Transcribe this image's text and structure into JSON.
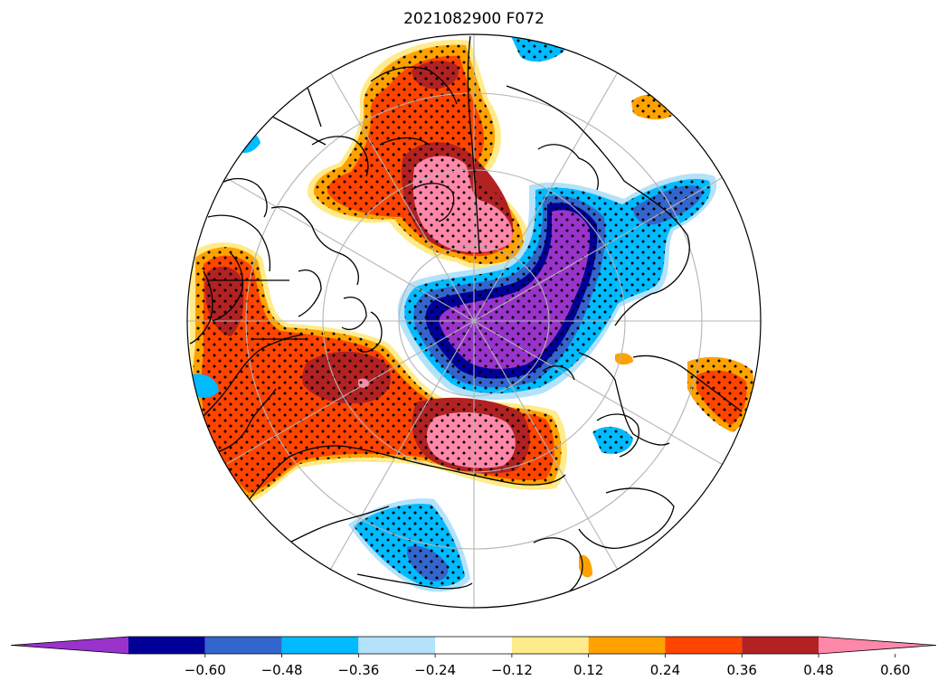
{
  "title": "2021082900 F072",
  "projection": "north-polar-stereographic",
  "stippling": "dots mark significant regions",
  "colorbar": {
    "orientation": "horizontal",
    "extend": "both",
    "levels": [
      -0.6,
      -0.48,
      -0.36,
      -0.24,
      -0.12,
      0.12,
      0.24,
      0.36,
      0.48,
      0.6
    ],
    "tick_labels": [
      "−0.60",
      "−0.48",
      "−0.36",
      "−0.24",
      "−0.12",
      "0.12",
      "0.24",
      "0.36",
      "0.48",
      "0.60"
    ],
    "colors": [
      "#9933cc",
      "#000099",
      "#3366cc",
      "#00bbff",
      "#b3e2fa",
      "#ffffff",
      "#ffeb8a",
      "#ffa200",
      "#ff4400",
      "#b22222",
      "#ff88aa"
    ]
  },
  "anomaly_regions": [
    {
      "name": "arctic-siberian-negative",
      "min_level": -0.6,
      "color": "#9933cc"
    },
    {
      "name": "scandinavia-positive",
      "max_level": 0.6,
      "color": "#ff88aa"
    },
    {
      "name": "north-america-positive",
      "max_level": 0.6,
      "color": "#ff88aa"
    },
    {
      "name": "europe-east-negative",
      "min_level": -0.36,
      "color": "#00bbff"
    },
    {
      "name": "pacific-negative",
      "min_level": -0.48,
      "color": "#3366cc"
    }
  ]
}
